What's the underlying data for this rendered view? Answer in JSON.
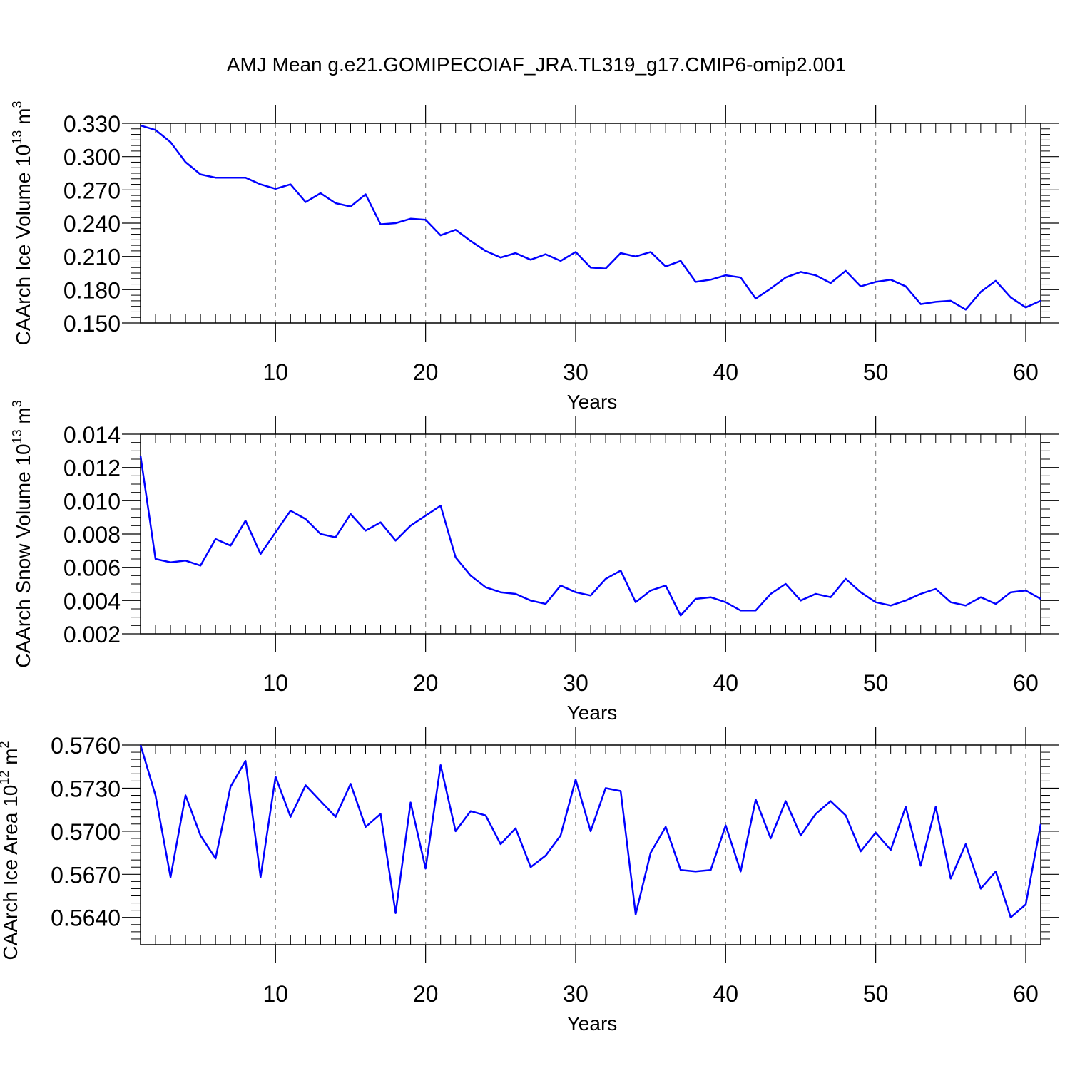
{
  "title": "AMJ Mean g.e21.GOMIPECOIAF_JRA.TL319_g17.CMIP6-omip2.001",
  "chart_data": [
    {
      "type": "line",
      "ylabel_main": "CAArch Ice Volume 10",
      "ylabel_exp": "13",
      "ylabel_unit": " m",
      "ylabel_unit_exp": "3",
      "xlabel": "Years",
      "xlim": [
        1,
        61
      ],
      "ylim": [
        0.15,
        0.33
      ],
      "xticks": [
        10,
        20,
        30,
        40,
        50,
        60
      ],
      "yticks": [
        0.15,
        0.18,
        0.21,
        0.24,
        0.27,
        0.3,
        0.33
      ],
      "ytick_labels": [
        "0.150",
        "0.180",
        "0.210",
        "0.240",
        "0.270",
        "0.300",
        "0.330"
      ],
      "yminor": [
        0.155,
        0.16,
        0.165,
        0.17,
        0.175,
        0.185,
        0.19,
        0.195,
        0.2,
        0.205,
        0.215,
        0.22,
        0.225,
        0.23,
        0.235,
        0.245,
        0.25,
        0.255,
        0.26,
        0.265,
        0.275,
        0.28,
        0.285,
        0.29,
        0.295,
        0.305,
        0.31,
        0.315,
        0.32,
        0.325
      ],
      "color": "#0000ff",
      "x": [
        1,
        2,
        3,
        4,
        5,
        6,
        7,
        8,
        9,
        10,
        11,
        12,
        13,
        14,
        15,
        16,
        17,
        18,
        19,
        20,
        21,
        22,
        23,
        24,
        25,
        26,
        27,
        28,
        29,
        30,
        31,
        32,
        33,
        34,
        35,
        36,
        37,
        38,
        39,
        40,
        41,
        42,
        43,
        44,
        45,
        46,
        47,
        48,
        49,
        50,
        51,
        52,
        53,
        54,
        55,
        56,
        57,
        58,
        59,
        60,
        61
      ],
      "y": [
        0.328,
        0.324,
        0.313,
        0.295,
        0.284,
        0.281,
        0.281,
        0.281,
        0.275,
        0.271,
        0.275,
        0.259,
        0.267,
        0.258,
        0.255,
        0.266,
        0.239,
        0.24,
        0.244,
        0.243,
        0.229,
        0.234,
        0.224,
        0.215,
        0.209,
        0.213,
        0.207,
        0.212,
        0.206,
        0.214,
        0.2,
        0.199,
        0.213,
        0.21,
        0.214,
        0.201,
        0.206,
        0.187,
        0.189,
        0.193,
        0.191,
        0.172,
        0.181,
        0.191,
        0.196,
        0.193,
        0.186,
        0.197,
        0.183,
        0.187,
        0.189,
        0.183,
        0.167,
        0.169,
        0.17,
        0.162,
        0.178,
        0.188,
        0.173,
        0.164,
        0.17
      ]
    },
    {
      "type": "line",
      "ylabel_main": "CAArch Snow Volume 10",
      "ylabel_exp": "13",
      "ylabel_unit": " m",
      "ylabel_unit_exp": "3",
      "xlabel": "Years",
      "xlim": [
        1,
        61
      ],
      "ylim": [
        0.002,
        0.014
      ],
      "xticks": [
        10,
        20,
        30,
        40,
        50,
        60
      ],
      "yticks": [
        0.002,
        0.004,
        0.006,
        0.008,
        0.01,
        0.012,
        0.014
      ],
      "ytick_labels": [
        "0.002",
        "0.004",
        "0.006",
        "0.008",
        "0.010",
        "0.012",
        "0.014"
      ],
      "yminor": [
        0.0025,
        0.003,
        0.0035,
        0.0045,
        0.005,
        0.0055,
        0.0065,
        0.007,
        0.0075,
        0.0085,
        0.009,
        0.0095,
        0.0105,
        0.011,
        0.0115,
        0.0125,
        0.013,
        0.0135
      ],
      "color": "#0000ff",
      "x": [
        1,
        2,
        3,
        4,
        5,
        6,
        7,
        8,
        9,
        10,
        11,
        12,
        13,
        14,
        15,
        16,
        17,
        18,
        19,
        20,
        21,
        22,
        23,
        24,
        25,
        26,
        27,
        28,
        29,
        30,
        31,
        32,
        33,
        34,
        35,
        36,
        37,
        38,
        39,
        40,
        41,
        42,
        43,
        44,
        45,
        46,
        47,
        48,
        49,
        50,
        51,
        52,
        53,
        54,
        55,
        56,
        57,
        58,
        59,
        60,
        61
      ],
      "y": [
        0.0127,
        0.0065,
        0.0063,
        0.0064,
        0.0061,
        0.0077,
        0.0073,
        0.0088,
        0.0068,
        0.0081,
        0.0094,
        0.0089,
        0.008,
        0.0078,
        0.0092,
        0.0082,
        0.0087,
        0.0076,
        0.0085,
        0.0091,
        0.0097,
        0.0066,
        0.0055,
        0.0048,
        0.0045,
        0.0044,
        0.004,
        0.0038,
        0.0049,
        0.0045,
        0.0043,
        0.0053,
        0.0058,
        0.0039,
        0.0046,
        0.0049,
        0.0031,
        0.0041,
        0.0042,
        0.0039,
        0.0034,
        0.0034,
        0.0044,
        0.005,
        0.004,
        0.0044,
        0.0042,
        0.0053,
        0.0045,
        0.0039,
        0.0037,
        0.004,
        0.0044,
        0.0047,
        0.0039,
        0.0037,
        0.0042,
        0.0038,
        0.0045,
        0.0046,
        0.0041
      ]
    },
    {
      "type": "line",
      "ylabel_main": "CAArch Ice Area 10",
      "ylabel_exp": "12",
      "ylabel_unit": " m",
      "ylabel_unit_exp": "2",
      "xlabel": "Years",
      "xlim": [
        1,
        61
      ],
      "ylim": [
        0.5621,
        0.576
      ],
      "xticks": [
        10,
        20,
        30,
        40,
        50,
        60
      ],
      "yticks": [
        0.564,
        0.567,
        0.57,
        0.573,
        0.576
      ],
      "ytick_labels": [
        "0.5640",
        "0.5670",
        "0.5700",
        "0.5730",
        "0.5760"
      ],
      "yminor": [
        0.5625,
        0.563,
        0.5635,
        0.5645,
        0.565,
        0.5655,
        0.566,
        0.5665,
        0.5675,
        0.568,
        0.5685,
        0.569,
        0.5695,
        0.5705,
        0.571,
        0.5715,
        0.572,
        0.5725,
        0.5735,
        0.574,
        0.5745,
        0.575,
        0.5755
      ],
      "color": "#0000ff",
      "x": [
        1,
        2,
        3,
        4,
        5,
        6,
        7,
        8,
        9,
        10,
        11,
        12,
        13,
        14,
        15,
        16,
        17,
        18,
        19,
        20,
        21,
        22,
        23,
        24,
        25,
        26,
        27,
        28,
        29,
        30,
        31,
        32,
        33,
        34,
        35,
        36,
        37,
        38,
        39,
        40,
        41,
        42,
        43,
        44,
        45,
        46,
        47,
        48,
        49,
        50,
        51,
        52,
        53,
        54,
        55,
        56,
        57,
        58,
        59,
        60,
        61
      ],
      "y": [
        0.576,
        0.5725,
        0.5668,
        0.5725,
        0.5697,
        0.5681,
        0.5731,
        0.5749,
        0.5668,
        0.5738,
        0.571,
        0.5732,
        0.5721,
        0.571,
        0.5733,
        0.5703,
        0.5712,
        0.5643,
        0.572,
        0.5674,
        0.5746,
        0.57,
        0.5714,
        0.5711,
        0.5691,
        0.5702,
        0.5675,
        0.5683,
        0.5697,
        0.5736,
        0.57,
        0.573,
        0.5728,
        0.5642,
        0.5685,
        0.5703,
        0.5673,
        0.5672,
        0.5673,
        0.5704,
        0.5672,
        0.5722,
        0.5695,
        0.5721,
        0.5697,
        0.5712,
        0.5721,
        0.5711,
        0.5686,
        0.5699,
        0.5687,
        0.5717,
        0.5676,
        0.5717,
        0.5667,
        0.5691,
        0.566,
        0.5672,
        0.564,
        0.5649,
        0.5705
      ]
    }
  ]
}
